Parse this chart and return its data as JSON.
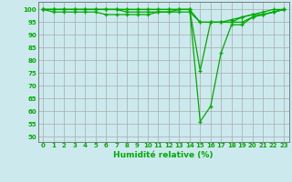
{
  "xlabel": "Humidité relative (%)",
  "xlim": [
    -0.5,
    23.5
  ],
  "ylim": [
    48,
    103
  ],
  "yticks": [
    50,
    55,
    60,
    65,
    70,
    75,
    80,
    85,
    90,
    95,
    100
  ],
  "xticks": [
    0,
    1,
    2,
    3,
    4,
    5,
    6,
    7,
    8,
    9,
    10,
    11,
    12,
    13,
    14,
    15,
    16,
    17,
    18,
    19,
    20,
    21,
    22,
    23
  ],
  "bg_color": "#cce9ee",
  "grid_color": "#aaaaaa",
  "line_color": "#00aa00",
  "series": [
    [
      100,
      100,
      100,
      100,
      100,
      100,
      100,
      100,
      100,
      100,
      100,
      100,
      100,
      100,
      100,
      56,
      62,
      83,
      94,
      94,
      97,
      98,
      99,
      100
    ],
    [
      100,
      99,
      99,
      99,
      99,
      99,
      98,
      98,
      98,
      98,
      98,
      99,
      99,
      100,
      100,
      95,
      95,
      95,
      95,
      97,
      98,
      98,
      99,
      100
    ],
    [
      100,
      100,
      100,
      100,
      100,
      100,
      100,
      100,
      99,
      99,
      99,
      99,
      99,
      99,
      99,
      95,
      95,
      95,
      96,
      97,
      98,
      99,
      100,
      100
    ],
    [
      100,
      100,
      100,
      100,
      100,
      100,
      100,
      100,
      100,
      100,
      100,
      100,
      100,
      100,
      100,
      76,
      95,
      95,
      95,
      95,
      97,
      98,
      99,
      100
    ]
  ]
}
